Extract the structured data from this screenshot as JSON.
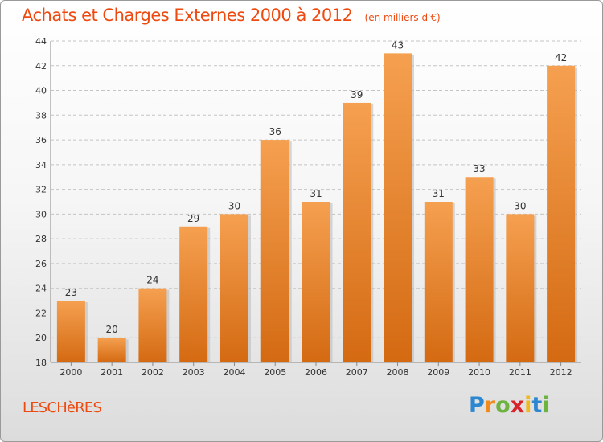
{
  "title": "Achats et Charges Externes 2000 à 2012",
  "unit": "(en milliers d'€)",
  "commune": "LESCHèRES",
  "logo": {
    "letters": [
      "P",
      "r",
      "o",
      "x",
      "i",
      "t",
      "i"
    ],
    "colors": [
      "#2c87d0",
      "#f08a1c",
      "#6cb33f",
      "#d8232a",
      "#f0b91c",
      "#2c87d0",
      "#6cb33f"
    ]
  },
  "colors": {
    "accent": "#ee4a10",
    "bar_top": "#f5a050",
    "bar_bottom": "#d46a12"
  },
  "chart_data": {
    "type": "bar",
    "categories": [
      "2000",
      "2001",
      "2002",
      "2003",
      "2004",
      "2005",
      "2006",
      "2007",
      "2008",
      "2009",
      "2010",
      "2011",
      "2012"
    ],
    "values": [
      23,
      20,
      24,
      29,
      30,
      36,
      31,
      39,
      43,
      31,
      33,
      30,
      42
    ],
    "ylim": [
      18,
      44
    ],
    "yticks": [
      18,
      20,
      22,
      24,
      26,
      28,
      30,
      32,
      34,
      36,
      38,
      40,
      42,
      44
    ],
    "grid": true,
    "title": "Achats et Charges Externes 2000 à 2012",
    "xlabel": "",
    "ylabel": ""
  }
}
